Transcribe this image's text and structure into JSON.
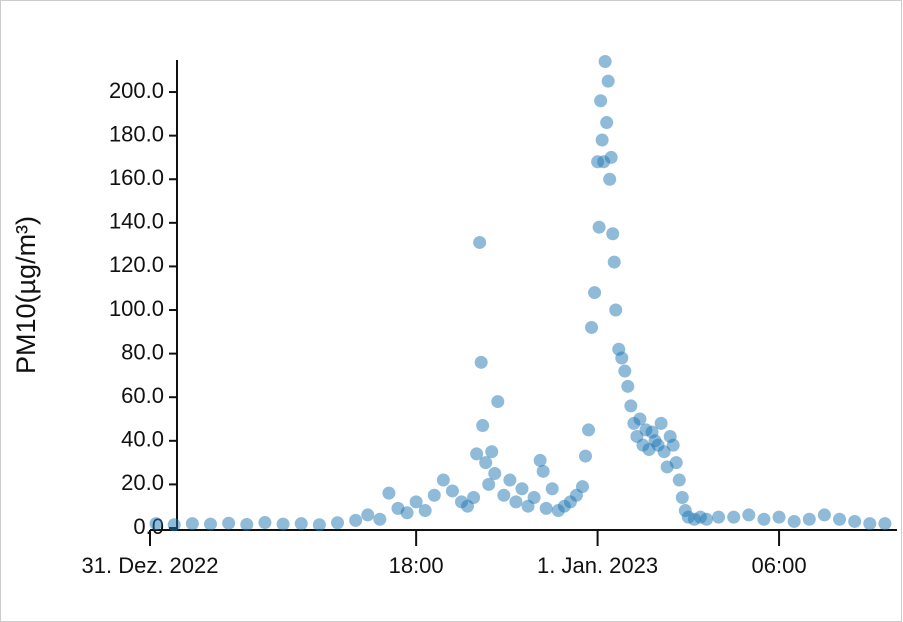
{
  "chart_data": {
    "type": "scatter",
    "y_label": "PM10(µg/m³)",
    "color": "#1f77b4",
    "x": [
      -14.6,
      -14,
      -13.4,
      -12.8,
      -12.2,
      -11.6,
      -11,
      -10.4,
      -9.8,
      -9.2,
      -8.6,
      -8,
      -7.6,
      -7.2,
      -6.9,
      -6.6,
      -6.3,
      -6,
      -5.7,
      -5.4,
      -5.1,
      -4.8,
      -4.5,
      -4.3,
      -4.1,
      -4.0,
      -3.9,
      -3.85,
      -3.8,
      -3.7,
      -3.6,
      -3.5,
      -3.4,
      -3.3,
      -3.1,
      -2.9,
      -2.7,
      -2.5,
      -2.3,
      -2.1,
      -1.9,
      -1.8,
      -1.7,
      -1.5,
      -1.3,
      -1.1,
      -0.9,
      -0.7,
      -0.5,
      -0.4,
      -0.3,
      -0.2,
      -0.1,
      0,
      0.05,
      0.1,
      0.15,
      0.2,
      0.25,
      0.3,
      0.35,
      0.4,
      0.45,
      0.5,
      0.55,
      0.6,
      0.7,
      0.8,
      0.9,
      1.0,
      1.1,
      1.2,
      1.3,
      1.4,
      1.5,
      1.6,
      1.7,
      1.8,
      1.9,
      2.0,
      2.1,
      2.2,
      2.3,
      2.4,
      2.5,
      2.6,
      2.7,
      2.8,
      2.9,
      3.0,
      3.2,
      3.4,
      3.6,
      4,
      4.5,
      5,
      5.5,
      6,
      6.5,
      7,
      7.5,
      8,
      8.5,
      9,
      9.5
    ],
    "values": [
      2,
      1.5,
      2,
      1.8,
      2.2,
      1.6,
      2.5,
      1.8,
      2,
      1.5,
      2.4,
      3.5,
      6,
      4,
      16,
      9,
      7,
      12,
      8,
      15,
      22,
      17,
      12,
      10,
      14,
      34,
      131,
      76,
      47,
      30,
      20,
      35,
      25,
      58,
      15,
      22,
      12,
      18,
      10,
      14,
      31,
      26,
      9,
      18,
      8,
      10,
      12,
      15,
      19,
      33,
      45,
      92,
      108,
      168,
      138,
      196,
      178,
      168,
      214,
      186,
      205,
      160,
      170,
      135,
      122,
      100,
      82,
      78,
      72,
      65,
      56,
      48,
      42,
      50,
      38,
      45,
      36,
      44,
      40,
      38,
      48,
      35,
      28,
      42,
      38,
      30,
      22,
      14,
      8,
      5,
      4,
      5,
      4,
      5,
      5,
      6,
      4,
      5,
      3,
      4,
      6,
      4,
      3,
      2,
      2
    ],
    "xlim": [
      -14.8,
      9.9
    ],
    "xticks": [
      {
        "value": -14.8,
        "label": "31. Dez. 2022"
      },
      {
        "value": -6,
        "label": "18:00"
      },
      {
        "value": 0,
        "label": "1. Jan. 2023"
      },
      {
        "value": 6,
        "label": "06:00"
      }
    ],
    "ylim": [
      0,
      214.7
    ],
    "yticks": [
      {
        "value": 0,
        "label": "0.0"
      },
      {
        "value": 20,
        "label": "20.0"
      },
      {
        "value": 40,
        "label": "40.0"
      },
      {
        "value": 60,
        "label": "60.0"
      },
      {
        "value": 80,
        "label": "80.0"
      },
      {
        "value": 100,
        "label": "100.0"
      },
      {
        "value": 120,
        "label": "120.0"
      },
      {
        "value": 140,
        "label": "140.0"
      },
      {
        "value": 160,
        "label": "160.0"
      },
      {
        "value": 180,
        "label": "180.0"
      },
      {
        "value": 200,
        "label": "200.0"
      }
    ]
  }
}
